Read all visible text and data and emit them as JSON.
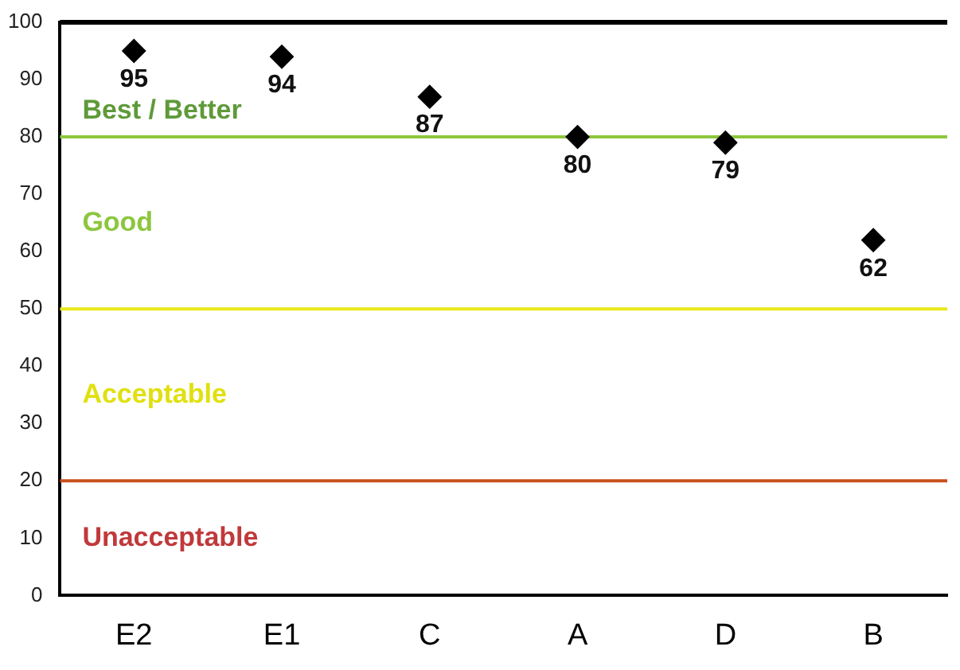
{
  "chart_data": {
    "type": "scatter",
    "categories": [
      "E2",
      "E1",
      "C",
      "A",
      "D",
      "B"
    ],
    "values": [
      95,
      94,
      87,
      80,
      79,
      62
    ],
    "color": "#000000",
    "marker": "diamond",
    "data_labels": true,
    "ylim": [
      0,
      100
    ],
    "yticks": [
      0,
      10,
      20,
      30,
      40,
      50,
      60,
      70,
      80,
      90,
      100
    ],
    "grid": false,
    "legend": false,
    "ref_lines": [
      {
        "axis": "y",
        "value": 80,
        "color": "#8dc63f"
      },
      {
        "axis": "y",
        "value": 50,
        "color": "#e8e81a"
      },
      {
        "axis": "y",
        "value": 20,
        "color": "#c8501e"
      }
    ],
    "annotations": [
      "Best / Better",
      "Good",
      "Acceptable",
      "Unacceptable"
    ]
  }
}
